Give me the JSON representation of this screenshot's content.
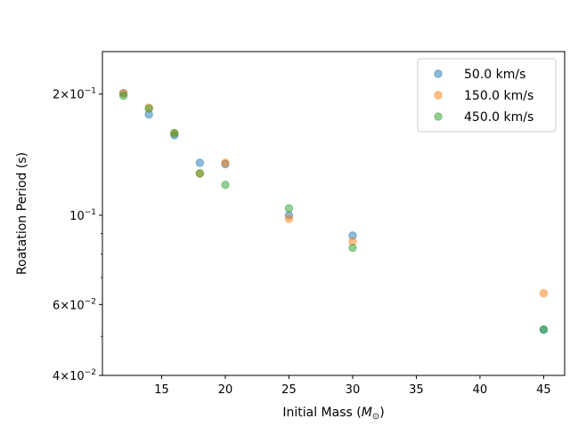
{
  "chart_data": {
    "type": "scatter",
    "xlabel": "Initial Mass (",
    "xlabel_math": "M",
    "xlabel_math_sub": "⊙",
    "xlabel_close": ")",
    "ylabel": "Roatation Period (s)",
    "xlim": [
      10.35,
      46.65
    ],
    "ylim": [
      0.04,
      0.255
    ],
    "y_scale": "log",
    "grid": false,
    "legend_position": "top-right",
    "x_ticks": [
      15,
      20,
      25,
      30,
      35,
      40,
      45
    ],
    "x_tick_labels": [
      "15",
      "20",
      "25",
      "30",
      "35",
      "40",
      "45"
    ],
    "y_major_ticks": [
      {
        "value": 0.2,
        "mantissa": "2",
        "times": "×",
        "base": "10",
        "exp": "−1"
      },
      {
        "value": 0.1,
        "mantissa": "",
        "times": "",
        "base": "10",
        "exp": "−1"
      },
      {
        "value": 0.06,
        "mantissa": "6",
        "times": "×",
        "base": "10",
        "exp": "−2"
      },
      {
        "value": 0.04,
        "mantissa": "4",
        "times": "×",
        "base": "10",
        "exp": "−2"
      }
    ],
    "y_minor_ticks": [
      0.05,
      0.07,
      0.08,
      0.09
    ],
    "series": [
      {
        "name": "50.0 km/s",
        "color": "#1f77b4",
        "points": [
          [
            12,
            0.201
          ],
          [
            14,
            0.178
          ],
          [
            16,
            0.158
          ],
          [
            18,
            0.135
          ],
          [
            20,
            0.134
          ],
          [
            25,
            0.1
          ],
          [
            30,
            0.089
          ],
          [
            45,
            0.052
          ]
        ]
      },
      {
        "name": "150.0 km/s",
        "color": "#ff7f0e",
        "points": [
          [
            12,
            0.201
          ],
          [
            14,
            0.185
          ],
          [
            16,
            0.16
          ],
          [
            18,
            0.127
          ],
          [
            20,
            0.135
          ],
          [
            25,
            0.098
          ],
          [
            30,
            0.086
          ],
          [
            45,
            0.064
          ]
        ]
      },
      {
        "name": "450.0 km/s",
        "color": "#2ca02c",
        "points": [
          [
            12,
            0.198
          ],
          [
            14,
            0.184
          ],
          [
            16,
            0.16
          ],
          [
            18,
            0.127
          ],
          [
            20,
            0.119
          ],
          [
            25,
            0.104
          ],
          [
            30,
            0.083
          ],
          [
            45,
            0.052
          ]
        ]
      }
    ]
  }
}
